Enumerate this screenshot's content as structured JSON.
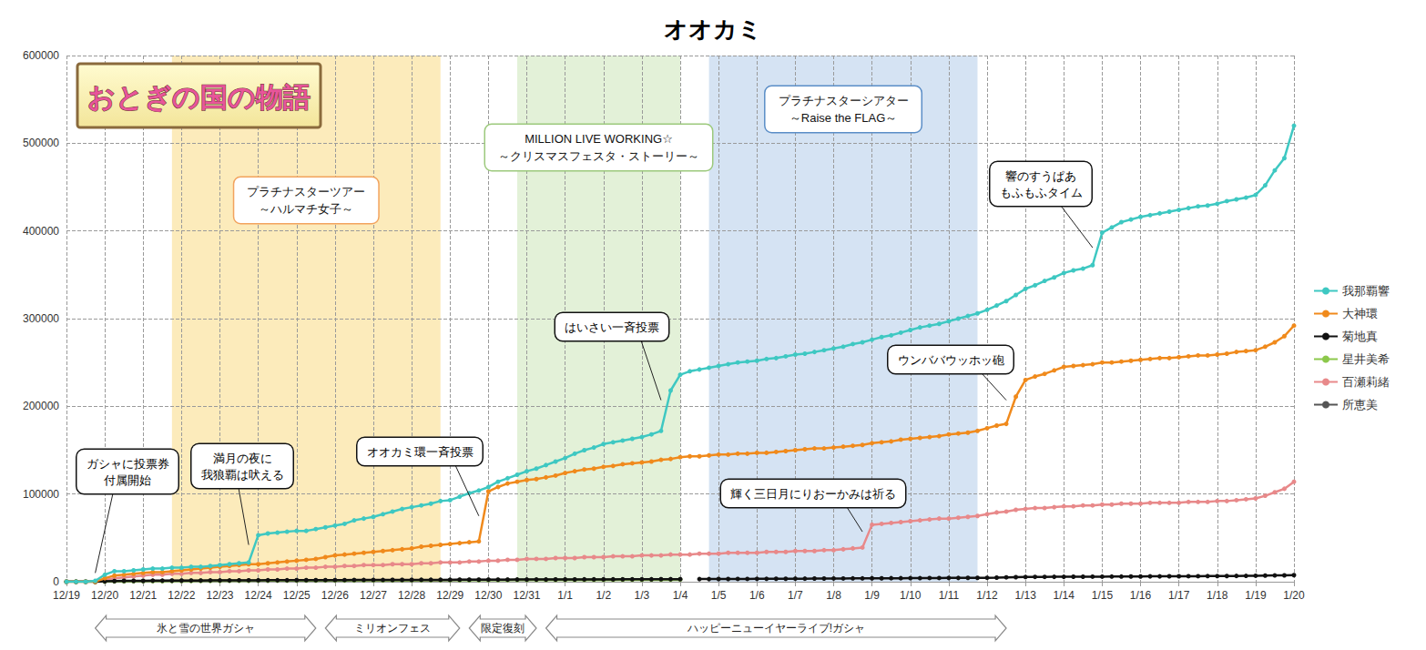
{
  "chart_data": {
    "type": "line",
    "title": "オオカミ",
    "logo": "おとぎの国の物語",
    "grid": true,
    "legend": "right",
    "marker": "circle",
    "ylim": [
      0,
      600000
    ],
    "yticks": [
      0,
      100000,
      200000,
      300000,
      400000,
      500000,
      600000
    ],
    "categories": [
      "12/19",
      null,
      null,
      null,
      "12/20",
      null,
      null,
      null,
      "12/21",
      null,
      null,
      null,
      "12/22",
      null,
      null,
      null,
      "12/23",
      null,
      null,
      null,
      "12/24",
      null,
      null,
      null,
      "12/25",
      null,
      null,
      null,
      "12/26",
      null,
      null,
      null,
      "12/27",
      null,
      null,
      null,
      "12/28",
      null,
      null,
      null,
      "12/29",
      null,
      null,
      null,
      "12/30",
      null,
      null,
      null,
      "12/31",
      null,
      null,
      null,
      "1/1",
      null,
      null,
      null,
      "1/2",
      null,
      null,
      null,
      "1/3",
      null,
      null,
      null,
      "1/4",
      null,
      null,
      null,
      "1/5",
      null,
      null,
      null,
      "1/6",
      null,
      null,
      null,
      "1/7",
      null,
      null,
      null,
      "1/8",
      null,
      null,
      null,
      "1/9",
      null,
      null,
      null,
      "1/10",
      null,
      null,
      null,
      "1/11",
      null,
      null,
      null,
      "1/12",
      null,
      null,
      null,
      "1/13",
      null,
      null,
      null,
      "1/14",
      null,
      null,
      null,
      "1/15",
      null,
      null,
      null,
      "1/16",
      null,
      null,
      null,
      "1/17",
      null,
      null,
      null,
      "1/18",
      null,
      null,
      null,
      "1/19",
      null,
      null,
      null,
      "1/20"
    ],
    "series": [
      {
        "name": "我那覇響",
        "color": "#3ec8c2",
        "values": [
          0,
          0,
          0,
          1000,
          8000,
          12000,
          12000,
          13000,
          14000,
          15000,
          15000,
          16000,
          16000,
          17000,
          17000,
          18000,
          19000,
          20000,
          21000,
          22000,
          53000,
          55000,
          56000,
          57000,
          58000,
          58000,
          60000,
          62000,
          64000,
          66000,
          70000,
          72000,
          74000,
          77000,
          80000,
          83000,
          85000,
          87000,
          89000,
          92000,
          93000,
          97000,
          101000,
          104000,
          108000,
          114000,
          118000,
          122000,
          126000,
          129000,
          133000,
          137000,
          141000,
          146000,
          150000,
          153000,
          157000,
          159000,
          161000,
          163000,
          165000,
          168000,
          172000,
          218000,
          236000,
          240000,
          242000,
          244000,
          246000,
          248000,
          250000,
          251000,
          252000,
          254000,
          255000,
          257000,
          259000,
          260000,
          262000,
          264000,
          266000,
          268000,
          271000,
          273000,
          276000,
          279000,
          281000,
          284000,
          287000,
          290000,
          292000,
          294000,
          297000,
          300000,
          303000,
          306000,
          310000,
          315000,
          320000,
          327000,
          334000,
          338000,
          343000,
          347000,
          352000,
          355000,
          357000,
          361000,
          398000,
          404000,
          410000,
          413000,
          416000,
          418000,
          420000,
          422000,
          424000,
          426000,
          428000,
          429000,
          431000,
          434000,
          436000,
          438000,
          441000,
          452000,
          469000,
          483000,
          520000
        ]
      },
      {
        "name": "大神環",
        "color": "#f08a1c",
        "values": [
          0,
          0,
          0,
          0,
          4000,
          7000,
          8000,
          9000,
          10000,
          11000,
          11000,
          12000,
          13000,
          14000,
          15000,
          16000,
          17000,
          18000,
          19000,
          20000,
          20000,
          21000,
          22000,
          23000,
          24000,
          25000,
          26000,
          28000,
          30000,
          31000,
          32000,
          33000,
          34000,
          35000,
          36000,
          37000,
          38000,
          40000,
          41000,
          42000,
          43000,
          44000,
          45000,
          46000,
          103000,
          108000,
          112000,
          114000,
          116000,
          117000,
          119000,
          121000,
          124000,
          126000,
          128000,
          129000,
          131000,
          132000,
          134000,
          135000,
          136000,
          137000,
          139000,
          140000,
          142000,
          143000,
          143000,
          144000,
          145000,
          145000,
          146000,
          146000,
          147000,
          147000,
          148000,
          149000,
          150000,
          151000,
          152000,
          152000,
          153000,
          154000,
          155000,
          156000,
          158000,
          159000,
          160000,
          162000,
          163000,
          164000,
          165000,
          166000,
          168000,
          169000,
          170000,
          172000,
          175000,
          178000,
          180000,
          211000,
          230000,
          234000,
          237000,
          241000,
          245000,
          246000,
          247000,
          248000,
          250000,
          250000,
          251000,
          252000,
          253000,
          254000,
          255000,
          255000,
          256000,
          257000,
          258000,
          258000,
          259000,
          260000,
          262000,
          263000,
          264000,
          268000,
          273000,
          280000,
          292000
        ]
      },
      {
        "name": "菊地真",
        "color": "#111111",
        "values": [
          0,
          0,
          0,
          0,
          500,
          800,
          1000,
          1000,
          1000,
          1200,
          1200,
          1300,
          1300,
          1400,
          1400,
          1500,
          1500,
          1500,
          1600,
          1600,
          1600,
          1700,
          1700,
          1700,
          1800,
          1800,
          1800,
          1900,
          1900,
          1900,
          2000,
          2000,
          2000,
          2000,
          2100,
          2100,
          2100,
          2200,
          2200,
          2200,
          2200,
          2300,
          2300,
          2300,
          2400,
          2400,
          2400,
          2500,
          2500,
          2500,
          2500,
          2600,
          2600,
          2600,
          2700,
          2700,
          2700,
          2700,
          2800,
          2800,
          2800,
          2800,
          2900,
          2900,
          2900,
          null,
          3000,
          3000,
          3100,
          3100,
          3200,
          3200,
          3300,
          3300,
          3400,
          3400,
          3500,
          3500,
          3600,
          3600,
          3700,
          3700,
          3800,
          3800,
          3900,
          3900,
          4000,
          4000,
          4100,
          4100,
          4200,
          4200,
          4300,
          4300,
          4400,
          4400,
          4500,
          4700,
          5000,
          5200,
          5400,
          5500,
          5500,
          5600,
          5600,
          5700,
          5700,
          5800,
          5800,
          5900,
          5900,
          6000,
          6000,
          6100,
          6100,
          6200,
          6200,
          6300,
          6300,
          6400,
          6400,
          6500,
          6600,
          6700,
          6800,
          7000,
          7200,
          7300,
          7500
        ]
      },
      {
        "name": "星井美希",
        "color": "#8cc84b",
        "values": [
          0,
          0,
          0,
          0,
          200,
          400,
          500,
          600,
          700,
          800,
          800,
          900,
          900,
          900,
          1000,
          1000,
          1000,
          1100,
          1100,
          1100,
          1200,
          1200,
          1200,
          1200,
          1300,
          1300,
          1300,
          1400,
          1400,
          1400,
          1500,
          1500,
          1500,
          1500,
          1600,
          1600,
          1600,
          1700,
          1700,
          1700,
          1700,
          1800,
          1800,
          1800,
          1900,
          1900,
          1900,
          2000,
          2000,
          2000,
          2000,
          2100,
          2100,
          2100,
          2200,
          2200,
          2200,
          2200,
          2300,
          2300,
          2300,
          2400,
          2400,
          2400,
          2500,
          null,
          null,
          null,
          null,
          null,
          null,
          null,
          null,
          null,
          null,
          null,
          null,
          null,
          null,
          null,
          null,
          null,
          null,
          null,
          null,
          null,
          null,
          null,
          null,
          null,
          null,
          null,
          null,
          null,
          null,
          null,
          null,
          null,
          null,
          null,
          null,
          null,
          null,
          null,
          null,
          null,
          null,
          null,
          null,
          null,
          null,
          null,
          null,
          null,
          null,
          null,
          null,
          null,
          null,
          null,
          null,
          null,
          null,
          null,
          null,
          null,
          null,
          null,
          null
        ]
      },
      {
        "name": "百瀬莉緒",
        "color": "#e8898a",
        "values": [
          0,
          0,
          0,
          0,
          2000,
          4000,
          5000,
          6000,
          7000,
          8000,
          8000,
          9000,
          9000,
          10000,
          10000,
          11000,
          11000,
          12000,
          12000,
          13000,
          13000,
          14000,
          14000,
          15000,
          15000,
          16000,
          16000,
          17000,
          17000,
          18000,
          18000,
          19000,
          19000,
          19000,
          20000,
          20000,
          20000,
          21000,
          21000,
          22000,
          22000,
          22000,
          23000,
          23000,
          24000,
          24000,
          25000,
          25000,
          26000,
          26000,
          26000,
          27000,
          27000,
          27000,
          28000,
          28000,
          28000,
          29000,
          29000,
          29000,
          30000,
          30000,
          30000,
          31000,
          31000,
          31000,
          32000,
          32000,
          32000,
          33000,
          33000,
          33000,
          33000,
          34000,
          34000,
          34000,
          35000,
          35000,
          35000,
          36000,
          36000,
          37000,
          38000,
          39000,
          65000,
          66000,
          67000,
          68000,
          69000,
          70000,
          71000,
          72000,
          72000,
          73000,
          74000,
          75000,
          77000,
          79000,
          80000,
          82000,
          83000,
          84000,
          84000,
          85000,
          86000,
          86000,
          87000,
          87000,
          88000,
          88000,
          89000,
          89000,
          89000,
          90000,
          90000,
          90000,
          90000,
          91000,
          91000,
          91000,
          92000,
          92000,
          93000,
          94000,
          95000,
          98000,
          102000,
          106000,
          114000
        ]
      },
      {
        "name": "所恵美",
        "color": "#555555",
        "values": [
          0,
          0,
          0,
          0,
          300,
          500,
          600,
          700,
          800,
          900,
          900,
          1000,
          1000,
          1100,
          1100,
          1100,
          1200,
          1200,
          1200,
          1300,
          1300,
          1300,
          1400,
          1400,
          1400,
          1500,
          1500,
          1500,
          1600,
          1600,
          1600,
          1700,
          1700,
          1700,
          1800,
          1800,
          1800,
          1900,
          1900,
          1900,
          2000,
          2000,
          2000,
          2100,
          2100,
          2100,
          2200,
          2200,
          2200,
          2300,
          2300,
          2300,
          2400,
          2400,
          2400,
          2500,
          2500,
          2500,
          2600,
          2600,
          2600,
          2700,
          2700,
          2700,
          2800,
          null,
          null,
          null,
          null,
          null,
          null,
          null,
          null,
          null,
          null,
          null,
          null,
          null,
          null,
          null,
          null,
          null,
          null,
          null,
          null,
          null,
          null,
          null,
          null,
          null,
          null,
          null,
          null,
          null,
          null,
          null,
          null,
          null,
          null,
          null,
          null,
          null,
          null,
          null,
          null,
          null,
          null,
          null,
          null,
          null,
          null,
          null,
          null,
          null,
          null,
          null,
          null,
          null,
          null,
          null,
          null,
          null,
          null,
          null,
          null,
          null,
          null,
          null,
          null
        ]
      }
    ],
    "bands": [
      {
        "label": "プラチナスターツアー\n～ハルマチ女子～",
        "x0": 11,
        "x1": 39,
        "color": "#fcebbb"
      },
      {
        "label": "MILLION LIVE WORKING☆\n～クリスマスフェスタ・ストーリー～",
        "x0": 47,
        "x1": 64,
        "color": "#e3f1d8"
      },
      {
        "label": "プラチナスターシアター\n～Raise the FLAG～",
        "x0": 67,
        "x1": 95,
        "color": "#d5e3f3"
      }
    ],
    "annotations": [
      {
        "text": "ガシャに投票券\n付属開始",
        "x": 3,
        "y": 10000
      },
      {
        "text": "満月の夜に\n我狼覇は吠える",
        "x": 19,
        "y": 42000
      },
      {
        "text": "オオカミ環一斉投票",
        "x": 43,
        "y": 75000
      },
      {
        "text": "はいさい一斉投票",
        "x": 62,
        "y": 207000
      },
      {
        "text": "ウンババウッホッ砲",
        "x": 98,
        "y": 207000
      },
      {
        "text": "輝く三日月にりおーかみは祈る",
        "x": 83,
        "y": 57000
      },
      {
        "text": "響のすうぱあ\nもふもふタイム",
        "x": 107,
        "y": 381000
      }
    ],
    "periods": [
      {
        "label": "氷と雪の世界ガシャ",
        "x0": 3,
        "x1": 26
      },
      {
        "label": "ミリオンフェス",
        "x0": 27,
        "x1": 41
      },
      {
        "label": "限定復刻",
        "x0": 42,
        "x1": 49
      },
      {
        "label": "ハッピーニューイヤーライブ!ガシャ",
        "x0": 50,
        "x1": 98
      }
    ]
  }
}
